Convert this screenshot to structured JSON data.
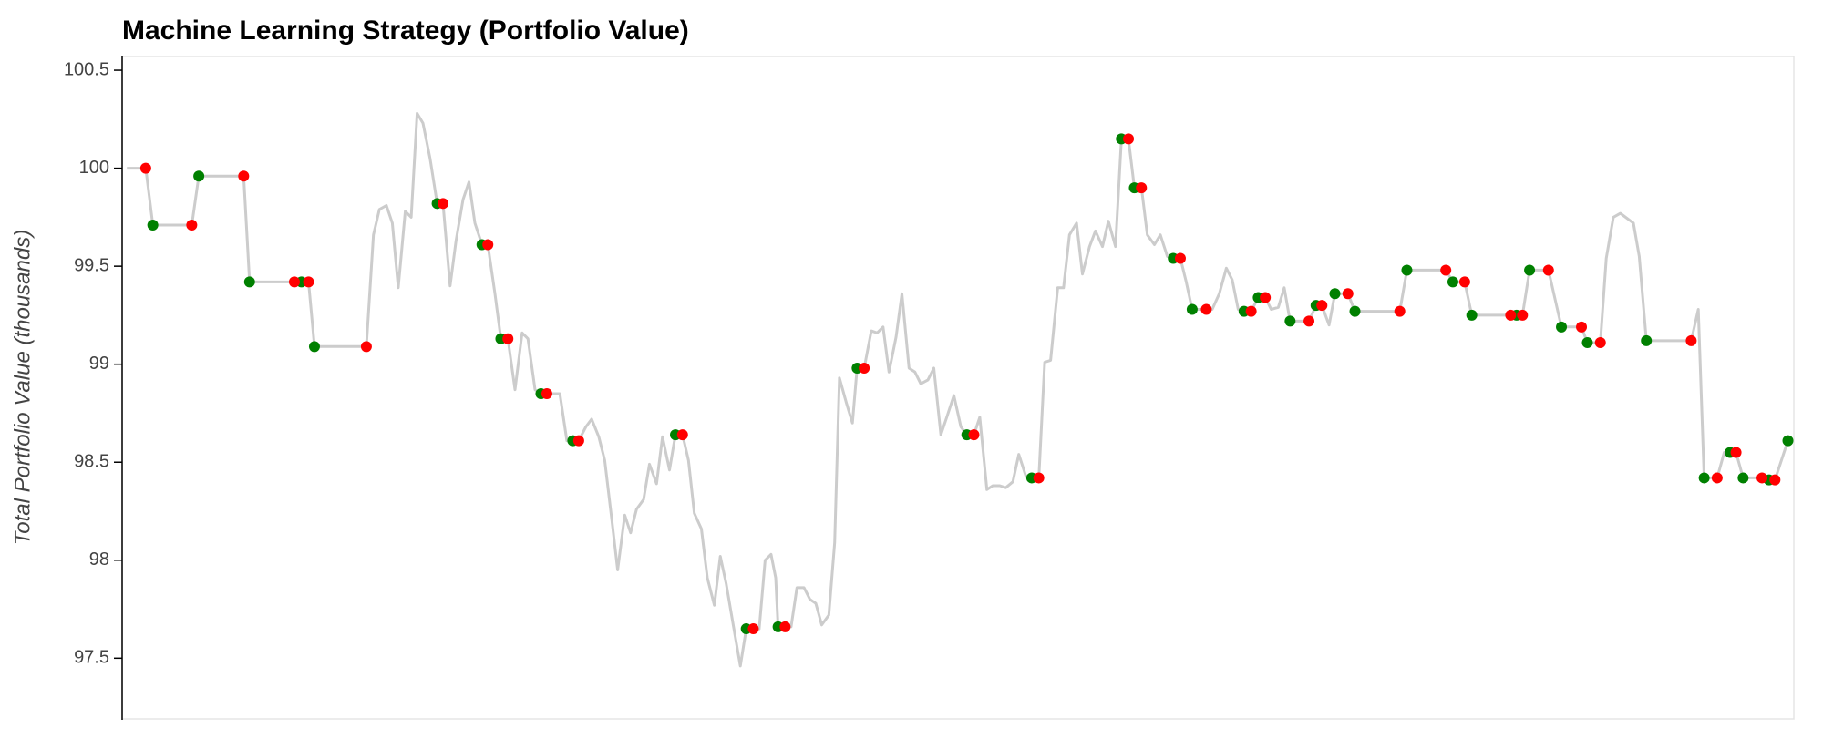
{
  "chart_data": {
    "type": "line",
    "title": "Machine Learning Strategy (Portfolio Value)",
    "ylabel": "Total Portfolio Value (thousands)",
    "xlim": [
      -4,
      1413
    ],
    "ylim": [
      97.19,
      100.57
    ],
    "yticks": [
      97.5,
      98,
      98.5,
      99,
      99.5,
      100,
      100.5
    ],
    "series": [
      {
        "color": "#cccccc",
        "x": [
          0,
          16,
          22,
          55,
          61,
          99,
          104,
          142,
          148,
          154,
          159,
          203,
          209,
          214,
          220,
          225,
          230,
          236,
          241,
          246,
          251,
          257,
          263,
          268,
          274,
          279,
          285,
          290,
          295,
          301,
          306,
          312,
          317,
          323,
          329,
          335,
          340,
          346,
          351,
          356,
          362,
          367,
          373,
          378,
          383,
          389,
          394,
          400,
          405,
          411,
          416,
          422,
          427,
          432,
          438,
          443,
          449,
          454,
          460,
          465,
          471,
          476,
          481,
          487,
          492,
          498,
          503,
          508,
          514,
          520,
          525,
          531,
          536,
          541,
          546,
          550,
          552,
          558,
          563,
          568,
          574,
          579,
          584,
          589,
          595,
          600,
          604,
          610,
          615,
          619,
          625,
          631,
          636,
          641,
          646,
          652,
          657,
          663,
          668,
          673,
          679,
          684,
          690,
          695,
          701,
          707,
          712,
          718,
          723,
          729,
          734,
          740,
          745,
          751,
          756,
          762,
          767,
          773,
          778,
          783,
          789,
          794,
          799,
          805,
          810,
          816,
          821,
          827,
          832,
          838,
          843,
          849,
          854,
          860,
          865,
          871,
          876,
          882,
          887,
          893,
          898,
          903,
          915,
          920,
          926,
          932,
          937,
          942,
          947,
          953,
          959,
          965,
          970,
          976,
          981,
          986,
          1002,
          1008,
          1013,
          1019,
          1024,
          1035,
          1041,
          1079,
          1085,
          1118,
          1124,
          1134,
          1140,
          1173,
          1178,
          1183,
          1189,
          1205,
          1216,
          1233,
          1238,
          1249,
          1254,
          1260,
          1266,
          1277,
          1282,
          1288,
          1326,
          1332,
          1337,
          1348,
          1354,
          1359,
          1364,
          1370,
          1386,
          1392,
          1397,
          1408
        ],
        "values": [
          100.0,
          100.0,
          99.71,
          99.71,
          99.96,
          99.96,
          99.42,
          99.42,
          99.42,
          99.42,
          99.09,
          99.09,
          99.66,
          99.79,
          99.81,
          99.72,
          99.39,
          99.78,
          99.75,
          100.28,
          100.23,
          100.05,
          99.82,
          99.82,
          99.4,
          99.63,
          99.84,
          99.93,
          99.72,
          99.61,
          99.61,
          99.36,
          99.13,
          99.13,
          98.87,
          99.16,
          99.13,
          98.87,
          98.85,
          98.85,
          98.85,
          98.85,
          98.61,
          98.61,
          98.61,
          98.68,
          98.72,
          98.63,
          98.51,
          98.21,
          97.95,
          98.23,
          98.14,
          98.26,
          98.31,
          98.49,
          98.39,
          98.63,
          98.46,
          98.64,
          98.64,
          98.51,
          98.24,
          98.16,
          97.91,
          97.77,
          98.02,
          97.88,
          97.67,
          97.46,
          97.65,
          97.65,
          97.65,
          98.0,
          98.03,
          97.91,
          97.66,
          97.66,
          97.66,
          97.86,
          97.86,
          97.8,
          97.78,
          97.67,
          97.72,
          98.09,
          98.93,
          98.8,
          98.7,
          98.98,
          98.98,
          99.17,
          99.16,
          99.19,
          98.96,
          99.14,
          99.36,
          98.98,
          98.96,
          98.9,
          98.92,
          98.98,
          98.64,
          98.73,
          98.84,
          98.68,
          98.64,
          98.64,
          98.73,
          98.36,
          98.38,
          98.38,
          98.37,
          98.4,
          98.54,
          98.43,
          98.42,
          98.42,
          99.01,
          99.02,
          99.39,
          99.39,
          99.66,
          99.72,
          99.46,
          99.6,
          99.68,
          99.6,
          99.73,
          99.6,
          100.15,
          100.15,
          99.9,
          99.9,
          99.66,
          99.61,
          99.66,
          99.55,
          99.54,
          99.54,
          99.42,
          99.28,
          99.28,
          99.28,
          99.36,
          99.49,
          99.43,
          99.28,
          99.27,
          99.27,
          99.34,
          99.34,
          99.28,
          99.29,
          99.39,
          99.22,
          99.22,
          99.3,
          99.3,
          99.2,
          99.36,
          99.36,
          99.27,
          99.27,
          99.48,
          99.48,
          99.42,
          99.42,
          99.25,
          99.25,
          99.25,
          99.25,
          99.48,
          99.48,
          99.19,
          99.19,
          99.11,
          99.11,
          99.54,
          99.75,
          99.77,
          99.72,
          99.55,
          99.12,
          99.12,
          99.28,
          98.42,
          98.42,
          98.55,
          98.55,
          98.55,
          98.42,
          98.42,
          98.41,
          98.41,
          98.61
        ]
      }
    ],
    "markers": [
      {
        "color": "green",
        "x": [
          22,
          61,
          104,
          148,
          159,
          263,
          301,
          317,
          351,
          378,
          465,
          525,
          552,
          619,
          712,
          767,
          843,
          854,
          887,
          903,
          947,
          959,
          986,
          1008,
          1024,
          1041,
          1085,
          1124,
          1140,
          1178,
          1189,
          1216,
          1238,
          1288,
          1337,
          1359,
          1370,
          1392,
          1408
        ],
        "values": [
          99.71,
          99.96,
          99.42,
          99.42,
          99.09,
          99.82,
          99.61,
          99.13,
          98.85,
          98.61,
          98.64,
          97.65,
          97.66,
          98.98,
          98.64,
          98.42,
          100.15,
          99.9,
          99.54,
          99.28,
          99.27,
          99.34,
          99.22,
          99.3,
          99.36,
          99.27,
          99.48,
          99.42,
          99.25,
          99.25,
          99.48,
          99.19,
          99.11,
          99.12,
          98.42,
          98.55,
          98.42,
          98.41,
          98.61
        ]
      },
      {
        "color": "red",
        "x": [
          16,
          55,
          99,
          142,
          154,
          203,
          268,
          306,
          323,
          356,
          383,
          471,
          531,
          558,
          625,
          718,
          773,
          849,
          860,
          893,
          915,
          953,
          965,
          1002,
          1013,
          1035,
          1079,
          1118,
          1134,
          1173,
          1183,
          1205,
          1233,
          1249,
          1326,
          1348,
          1364,
          1386,
          1397
        ],
        "values": [
          100.0,
          99.71,
          99.96,
          99.42,
          99.42,
          99.09,
          99.82,
          99.61,
          99.13,
          98.85,
          98.61,
          98.64,
          97.65,
          97.66,
          98.98,
          98.64,
          98.42,
          100.15,
          99.9,
          99.54,
          99.28,
          99.27,
          99.34,
          99.22,
          99.3,
          99.36,
          99.27,
          99.48,
          99.42,
          99.25,
          99.25,
          99.48,
          99.19,
          99.11,
          99.12,
          98.42,
          98.55,
          98.42,
          98.41
        ]
      }
    ]
  }
}
